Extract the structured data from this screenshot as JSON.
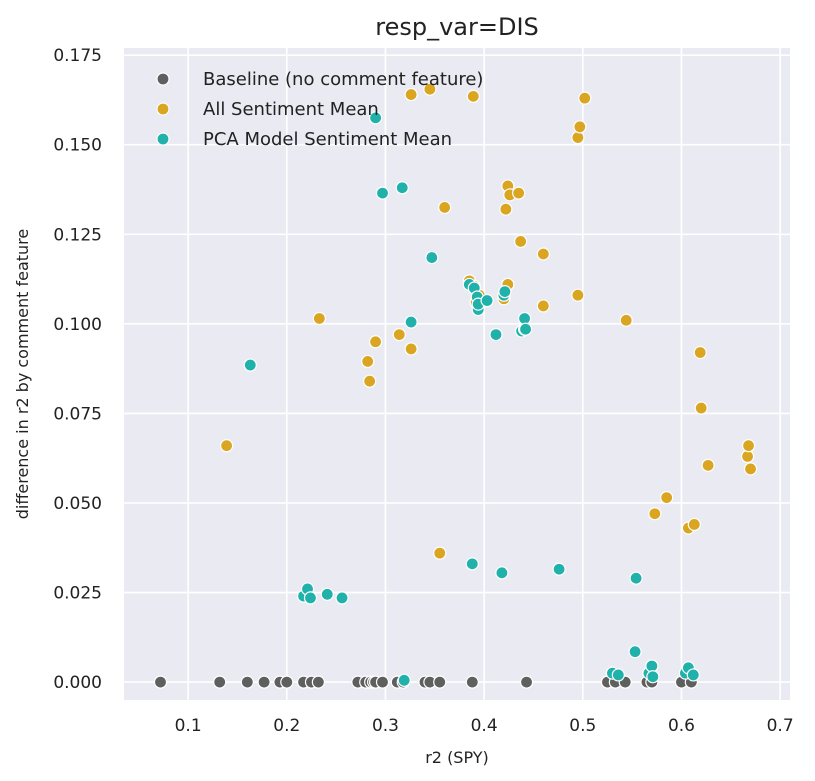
{
  "chart_data": {
    "type": "scatter",
    "title": "resp_var=DIS",
    "xlabel": "r2 (SPY)",
    "ylabel": "difference in r2 by comment feature",
    "xlim": [
      0.035,
      0.71
    ],
    "ylim": [
      -0.005,
      0.177
    ],
    "xticks": [
      0.1,
      0.2,
      0.3,
      0.4,
      0.5,
      0.6,
      0.7
    ],
    "xtick_labels": [
      "0.1",
      "0.2",
      "0.3",
      "0.4",
      "0.5",
      "0.6",
      "0.7"
    ],
    "yticks": [
      0.0,
      0.025,
      0.05,
      0.075,
      0.1,
      0.125,
      0.15,
      0.175
    ],
    "ytick_labels": [
      "0.000",
      "0.025",
      "0.050",
      "0.075",
      "0.100",
      "0.125",
      "0.150",
      "0.175"
    ],
    "grid": true,
    "legend_position": "top-left",
    "background": "#eaeaf2",
    "series": [
      {
        "name": "Baseline (no comment feature)",
        "color": "#5f5f5f",
        "points": [
          [
            0.072,
            0.0
          ],
          [
            0.132,
            0.0
          ],
          [
            0.16,
            0.0
          ],
          [
            0.177,
            0.0
          ],
          [
            0.193,
            0.0
          ],
          [
            0.2,
            0.0
          ],
          [
            0.217,
            0.0
          ],
          [
            0.225,
            0.0
          ],
          [
            0.232,
            0.0
          ],
          [
            0.272,
            0.0
          ],
          [
            0.28,
            0.0
          ],
          [
            0.285,
            0.0
          ],
          [
            0.288,
            0.0
          ],
          [
            0.29,
            0.0
          ],
          [
            0.297,
            0.0
          ],
          [
            0.312,
            0.0
          ],
          [
            0.318,
            0.0
          ],
          [
            0.34,
            0.0
          ],
          [
            0.345,
            0.0
          ],
          [
            0.355,
            0.0
          ],
          [
            0.388,
            0.0
          ],
          [
            0.443,
            0.0
          ],
          [
            0.525,
            0.0
          ],
          [
            0.533,
            0.0
          ],
          [
            0.543,
            0.0
          ],
          [
            0.565,
            0.0
          ],
          [
            0.57,
            0.0
          ],
          [
            0.6,
            0.0
          ],
          [
            0.61,
            0.0
          ]
        ]
      },
      {
        "name": "All Sentiment Mean",
        "color": "#daa520",
        "points": [
          [
            0.139,
            0.066
          ],
          [
            0.233,
            0.1015
          ],
          [
            0.282,
            0.0895
          ],
          [
            0.284,
            0.084
          ],
          [
            0.29,
            0.095
          ],
          [
            0.314,
            0.097
          ],
          [
            0.326,
            0.093
          ],
          [
            0.326,
            0.164
          ],
          [
            0.345,
            0.1655
          ],
          [
            0.355,
            0.036
          ],
          [
            0.36,
            0.1325
          ],
          [
            0.385,
            0.112
          ],
          [
            0.39,
            0.1105
          ],
          [
            0.389,
            0.1635
          ],
          [
            0.392,
            0.106
          ],
          [
            0.395,
            0.108
          ],
          [
            0.42,
            0.107
          ],
          [
            0.422,
            0.132
          ],
          [
            0.424,
            0.1385
          ],
          [
            0.426,
            0.136
          ],
          [
            0.424,
            0.111
          ],
          [
            0.435,
            0.1365
          ],
          [
            0.437,
            0.123
          ],
          [
            0.46,
            0.1195
          ],
          [
            0.46,
            0.105
          ],
          [
            0.495,
            0.108
          ],
          [
            0.495,
            0.152
          ],
          [
            0.497,
            0.155
          ],
          [
            0.502,
            0.163
          ],
          [
            0.544,
            0.101
          ],
          [
            0.573,
            0.047
          ],
          [
            0.585,
            0.0515
          ],
          [
            0.607,
            0.043
          ],
          [
            0.613,
            0.044
          ],
          [
            0.619,
            0.092
          ],
          [
            0.62,
            0.0765
          ],
          [
            0.627,
            0.0605
          ],
          [
            0.667,
            0.063
          ],
          [
            0.668,
            0.066
          ],
          [
            0.67,
            0.0595
          ]
        ]
      },
      {
        "name": "PCA Model Sentiment Mean",
        "color": "#20b2aa",
        "points": [
          [
            0.163,
            0.0885
          ],
          [
            0.217,
            0.024
          ],
          [
            0.221,
            0.026
          ],
          [
            0.224,
            0.0235
          ],
          [
            0.241,
            0.0245
          ],
          [
            0.256,
            0.0235
          ],
          [
            0.29,
            0.1575
          ],
          [
            0.297,
            0.1365
          ],
          [
            0.317,
            0.138
          ],
          [
            0.319,
            0.0005
          ],
          [
            0.326,
            0.1005
          ],
          [
            0.347,
            0.1185
          ],
          [
            0.385,
            0.111
          ],
          [
            0.388,
            0.033
          ],
          [
            0.39,
            0.11
          ],
          [
            0.393,
            0.1075
          ],
          [
            0.394,
            0.104
          ],
          [
            0.394,
            0.1055
          ],
          [
            0.403,
            0.1065
          ],
          [
            0.412,
            0.097
          ],
          [
            0.418,
            0.0305
          ],
          [
            0.42,
            0.108
          ],
          [
            0.421,
            0.109
          ],
          [
            0.438,
            0.098
          ],
          [
            0.441,
            0.0985
          ],
          [
            0.441,
            0.1015
          ],
          [
            0.442,
            0.0985
          ],
          [
            0.476,
            0.0315
          ],
          [
            0.53,
            0.0025
          ],
          [
            0.536,
            0.002
          ],
          [
            0.553,
            0.0085
          ],
          [
            0.554,
            0.029
          ],
          [
            0.567,
            0.0025
          ],
          [
            0.57,
            0.0045
          ],
          [
            0.571,
            0.0015
          ],
          [
            0.604,
            0.0025
          ],
          [
            0.607,
            0.004
          ],
          [
            0.612,
            0.002
          ]
        ]
      }
    ]
  }
}
